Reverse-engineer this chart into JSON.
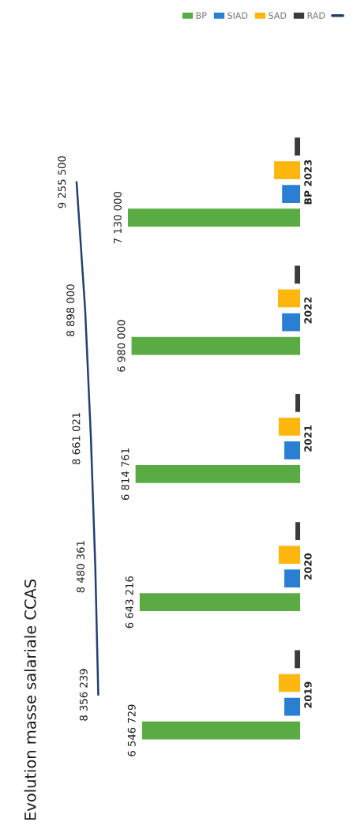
{
  "chart_data": {
    "type": "bar",
    "orientation": "horizontal",
    "title": "Evolution masse salariale CCAS",
    "categories": [
      "BP 2023",
      "2022",
      "2021",
      "2020",
      "2019"
    ],
    "series": [
      {
        "name": "BP",
        "color": "#5aab44",
        "values": [
          7130000,
          6980000,
          6814761,
          6643216,
          6546729
        ],
        "value_labels": [
          "7 130 000",
          "6 980 000",
          "6 814 761",
          "6 643 216",
          "6 546 729"
        ]
      },
      {
        "name": "SIAD",
        "color": "#2b7fd3",
        "values": [
          750000,
          750000,
          660000,
          660000,
          660000
        ]
      },
      {
        "name": "SAD",
        "color": "#ffb60f",
        "values": [
          1080000,
          920000,
          890000,
          890000,
          890000
        ]
      },
      {
        "name": "RAD",
        "color": "#3b3b3b",
        "values": [
          230000,
          230000,
          200000,
          200000,
          230000
        ]
      },
      {
        "type": "line",
        "color": "#24406e",
        "values": [
          9255500,
          8898000,
          8661021,
          8480361,
          8356239
        ],
        "value_labels": [
          "9 255 500",
          "8 898 000",
          "8 661 021",
          "8 480 361",
          "8 356 239"
        ]
      }
    ],
    "tick_labels": "y",
    "legend": "top right",
    "marker": "none",
    "line_style": "solid",
    "grid": false
  }
}
